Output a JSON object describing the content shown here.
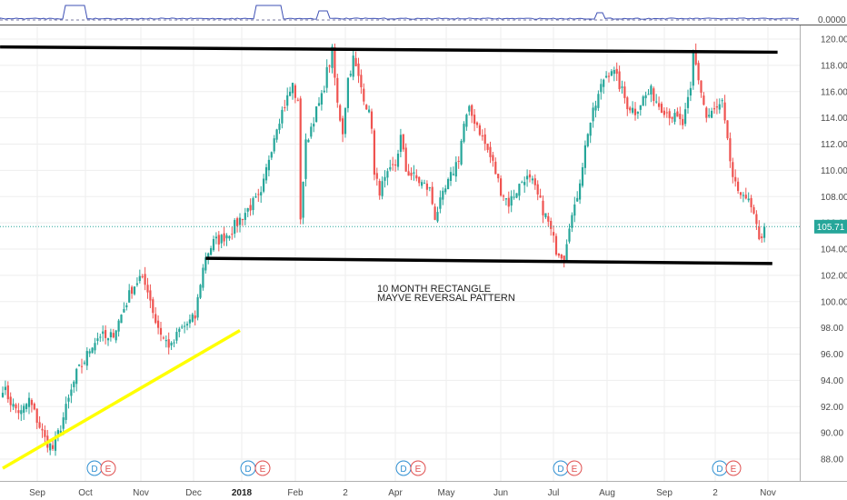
{
  "chart_data": {
    "type": "candlestick",
    "y_ticks": [
      "120.00",
      "118.00",
      "116.00",
      "114.00",
      "112.00",
      "110.00",
      "108.00",
      "106.00",
      "104.00",
      "102.00",
      "100.00",
      "98.00",
      "96.00",
      "94.00",
      "92.00",
      "90.00",
      "88.00"
    ],
    "ylim": [
      87,
      121
    ],
    "x_labels": [
      "Sep",
      "Oct",
      "Nov",
      "Dec",
      "2018",
      "Feb",
      "2",
      "Apr",
      "May",
      "Jun",
      "Jul",
      "Aug",
      "Sep",
      "2",
      "Nov"
    ],
    "bold_x_labels": [
      "2018"
    ],
    "last_price": "105.71",
    "last_price_value": 105.71,
    "indicator_value": "0.0000",
    "annotation_lines": [
      "10 MONTH RECTANGLE",
      "MAYVE REVERSAL PATTERN"
    ],
    "event_badges": [
      {
        "d": "D",
        "e": "E"
      },
      {
        "d": "D",
        "e": "E"
      },
      {
        "d": "D",
        "e": "E"
      },
      {
        "d": "D",
        "e": "E"
      },
      {
        "d": "D",
        "e": "E"
      }
    ],
    "price_path": [
      [
        0,
        93.5
      ],
      [
        4,
        92.0
      ],
      [
        7,
        91.5
      ],
      [
        10,
        92.5
      ],
      [
        13,
        91.0
      ],
      [
        16,
        89.5
      ],
      [
        19,
        88.8
      ],
      [
        22,
        90.5
      ],
      [
        25,
        92.5
      ],
      [
        28,
        94.5
      ],
      [
        31,
        95.5
      ],
      [
        34,
        96.8
      ],
      [
        37,
        97.5
      ],
      [
        40,
        97.0
      ],
      [
        43,
        98.0
      ],
      [
        46,
        99.5
      ],
      [
        49,
        101.0
      ],
      [
        52,
        101.8
      ],
      [
        55,
        101.0
      ],
      [
        58,
        98.5
      ],
      [
        61,
        97.2
      ],
      [
        64,
        96.5
      ],
      [
        67,
        97.8
      ],
      [
        70,
        98.3
      ],
      [
        73,
        98.8
      ],
      [
        75,
        101.5
      ],
      [
        77,
        103.5
      ],
      [
        80,
        104.5
      ],
      [
        83,
        104.8
      ],
      [
        86,
        105.3
      ],
      [
        89,
        106.0
      ],
      [
        92,
        106.8
      ],
      [
        95,
        107.5
      ],
      [
        98,
        108.0
      ],
      [
        101,
        111.0
      ],
      [
        104,
        113.5
      ],
      [
        107,
        115.0
      ],
      [
        110,
        116.5
      ],
      [
        112,
        115.0
      ],
      [
        113,
        106.5
      ],
      [
        115,
        112.0
      ],
      [
        118,
        114.0
      ],
      [
        121,
        115.5
      ],
      [
        123,
        117.5
      ],
      [
        125,
        119.0
      ],
      [
        127,
        115.0
      ],
      [
        129,
        113.0
      ],
      [
        131,
        117.0
      ],
      [
        133,
        118.5
      ],
      [
        135,
        117.0
      ],
      [
        138,
        115.0
      ],
      [
        140,
        113.5
      ],
      [
        141,
        109.5
      ],
      [
        143,
        108.5
      ],
      [
        146,
        109.5
      ],
      [
        149,
        110.5
      ],
      [
        151,
        112.5
      ],
      [
        153,
        110.0
      ],
      [
        156,
        109.5
      ],
      [
        159,
        109.0
      ],
      [
        162,
        108.5
      ],
      [
        164,
        106.5
      ],
      [
        167,
        108.0
      ],
      [
        170,
        109.5
      ],
      [
        173,
        111.0
      ],
      [
        175,
        113.5
      ],
      [
        177,
        114.5
      ],
      [
        180,
        113.5
      ],
      [
        183,
        112.0
      ],
      [
        186,
        110.5
      ],
      [
        189,
        108.5
      ],
      [
        192,
        107.5
      ],
      [
        195,
        108.5
      ],
      [
        198,
        109.5
      ],
      [
        201,
        109.0
      ],
      [
        204,
        107.5
      ],
      [
        207,
        106.0
      ],
      [
        210,
        104.0
      ],
      [
        213,
        103.5
      ],
      [
        215,
        106.0
      ],
      [
        217,
        107.0
      ],
      [
        220,
        110.5
      ],
      [
        222,
        113.0
      ],
      [
        225,
        115.0
      ],
      [
        228,
        117.0
      ],
      [
        231,
        117.8
      ],
      [
        234,
        116.5
      ],
      [
        237,
        115.0
      ],
      [
        240,
        114.5
      ],
      [
        243,
        115.5
      ],
      [
        246,
        116.0
      ],
      [
        249,
        115.0
      ],
      [
        252,
        114.5
      ],
      [
        255,
        114.0
      ],
      [
        258,
        113.5
      ],
      [
        261,
        116.0
      ],
      [
        262,
        119.0
      ],
      [
        264,
        117.0
      ],
      [
        267,
        114.0
      ],
      [
        270,
        114.5
      ],
      [
        273,
        115.0
      ],
      [
        275,
        112.0
      ],
      [
        277,
        109.5
      ],
      [
        279,
        108.0
      ],
      [
        281,
        108.5
      ],
      [
        283,
        107.5
      ],
      [
        285,
        106.5
      ],
      [
        287,
        104.5
      ],
      [
        289,
        105.7
      ]
    ],
    "trend_lines": [
      {
        "name": "resistance",
        "color": "#000000",
        "from": [
          -1,
          119.4
        ],
        "to": [
          294,
          119.0
        ]
      },
      {
        "name": "support",
        "color": "#000000",
        "from": [
          77,
          103.3
        ],
        "to": [
          292,
          102.9
        ]
      },
      {
        "name": "uptrend",
        "color": "#ffff00",
        "from": [
          0,
          87.3
        ],
        "to": [
          90,
          97.8
        ]
      }
    ]
  },
  "colors": {
    "up": "#26a69a",
    "down": "#ef5350",
    "last_price_badge": "#26a69a",
    "grid": "#eeeeee",
    "indicator_line": "#3f51b5"
  }
}
